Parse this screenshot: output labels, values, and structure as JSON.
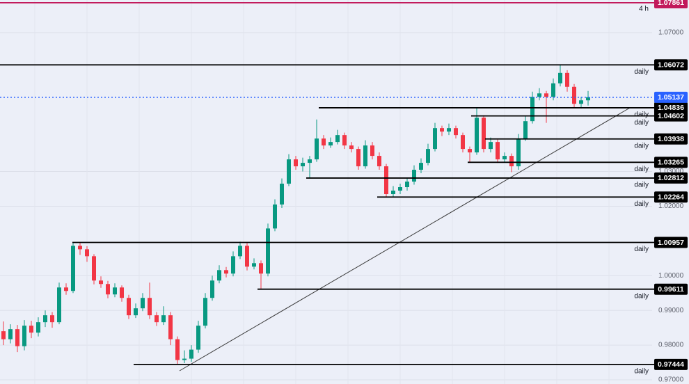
{
  "chart_data": {
    "type": "candlestick",
    "up_color": "#089981",
    "down_color": "#f23645",
    "ylim": [
      0.9688,
      1.0794
    ],
    "yticks": [
      {
        "value": 0.97,
        "label": "0.97000"
      },
      {
        "value": 0.98,
        "label": "0.98000"
      },
      {
        "value": 0.99,
        "label": "0.99000"
      },
      {
        "value": 1.0,
        "label": "1.00000"
      },
      {
        "value": 1.02,
        "label": "1.02000"
      },
      {
        "value": 1.03,
        "label": "1.03000"
      },
      {
        "value": 1.07,
        "label": "1.07000"
      }
    ],
    "grid": true,
    "current_price": {
      "value": 1.05137,
      "color": "#2962ff"
    },
    "levels": [
      {
        "value": 1.07861,
        "tag": "4 h",
        "color": "#c2185b"
      },
      {
        "value": 1.06072,
        "tag": "daily",
        "color": "#000000"
      },
      {
        "value": 1.04836,
        "tag": "daily",
        "color": "#000000"
      },
      {
        "value": 1.04602,
        "tag": "daily",
        "color": "#000000"
      },
      {
        "value": 1.03938,
        "tag": "daily",
        "color": "#000000"
      },
      {
        "value": 1.03265,
        "tag": "daily",
        "color": "#000000"
      },
      {
        "value": 1.02812,
        "tag": "daily",
        "color": "#000000"
      },
      {
        "value": 1.02264,
        "tag": "daily",
        "color": "#000000"
      },
      {
        "value": 1.00957,
        "tag": "daily",
        "color": "#000000"
      },
      {
        "value": 0.99611,
        "tag": "daily",
        "color": "#000000"
      },
      {
        "value": 0.97444,
        "tag": "daily",
        "color": "#000000"
      }
    ],
    "ohlc": [
      [
        0.984,
        0.9868,
        0.98,
        0.9817
      ],
      [
        0.9817,
        0.986,
        0.9805,
        0.9846
      ],
      [
        0.9846,
        0.9858,
        0.978,
        0.9797
      ],
      [
        0.9797,
        0.9872,
        0.9785,
        0.9856
      ],
      [
        0.9856,
        0.987,
        0.982,
        0.9836
      ],
      [
        0.9836,
        0.988,
        0.9825,
        0.9866
      ],
      [
        0.9866,
        0.99,
        0.9852,
        0.9886
      ],
      [
        0.9886,
        0.9895,
        0.985,
        0.9866
      ],
      [
        0.9866,
        0.998,
        0.986,
        0.9966
      ],
      [
        0.9966,
        0.9978,
        0.9945,
        0.9956
      ],
      [
        0.9956,
        1.0096,
        0.995,
        1.0086
      ],
      [
        1.0086,
        1.0095,
        1.006,
        1.0076
      ],
      [
        1.0076,
        1.0085,
        1.004,
        1.0056
      ],
      [
        1.0056,
        1.0062,
        0.9975,
        0.9986
      ],
      [
        0.9986,
        0.9998,
        0.9965,
        0.9976
      ],
      [
        0.9976,
        0.9985,
        0.9935,
        0.9946
      ],
      [
        0.9946,
        0.9978,
        0.9938,
        0.9966
      ],
      [
        0.9966,
        0.9972,
        0.9925,
        0.9936
      ],
      [
        0.9936,
        0.9945,
        0.9875,
        0.9886
      ],
      [
        0.9886,
        0.992,
        0.9878,
        0.9906
      ],
      [
        0.9906,
        0.995,
        0.9898,
        0.9936
      ],
      [
        0.9936,
        0.998,
        0.9875,
        0.9886
      ],
      [
        0.9886,
        0.9895,
        0.9855,
        0.9866
      ],
      [
        0.9866,
        0.9912,
        0.9858,
        0.9886
      ],
      [
        0.9886,
        0.9895,
        0.98,
        0.9817
      ],
      [
        0.9817,
        0.9825,
        0.9744,
        0.9757
      ],
      [
        0.9757,
        0.9785,
        0.9748,
        0.9761
      ],
      [
        0.9761,
        0.98,
        0.9752,
        0.9787
      ],
      [
        0.9787,
        0.987,
        0.9778,
        0.9856
      ],
      [
        0.9856,
        0.995,
        0.9848,
        0.9936
      ],
      [
        0.9936,
        1.0,
        0.9928,
        0.9986
      ],
      [
        0.9986,
        1.003,
        0.9978,
        1.0016
      ],
      [
        1.0016,
        1.0025,
        0.9995,
        1.0006
      ],
      [
        1.0006,
        1.007,
        0.9998,
        1.0056
      ],
      [
        1.0056,
        1.0098,
        1.0048,
        1.0086
      ],
      [
        1.0086,
        1.0094,
        1.0015,
        1.0026
      ],
      [
        1.0026,
        1.005,
        1.0018,
        1.0036
      ],
      [
        1.0036,
        1.0044,
        0.9961,
        1.0006
      ],
      [
        1.0006,
        1.015,
        0.9998,
        1.0136
      ],
      [
        1.0136,
        1.022,
        1.0128,
        1.0205
      ],
      [
        1.0205,
        1.028,
        1.0195,
        1.0265
      ],
      [
        1.0265,
        1.035,
        1.0258,
        1.0335
      ],
      [
        1.0335,
        1.0345,
        1.0305,
        1.0315
      ],
      [
        1.0315,
        1.034,
        1.03,
        1.0325
      ],
      [
        1.0325,
        1.0345,
        1.0281,
        1.0335
      ],
      [
        1.0335,
        1.045,
        1.0328,
        1.0395
      ],
      [
        1.0395,
        1.0405,
        1.0365,
        1.0375
      ],
      [
        1.0375,
        1.0398,
        1.0368,
        1.0385
      ],
      [
        1.0385,
        1.042,
        1.0378,
        1.0405
      ],
      [
        1.0405,
        1.0412,
        1.0365,
        1.0375
      ],
      [
        1.0375,
        1.0385,
        1.0355,
        1.0365
      ],
      [
        1.0365,
        1.0372,
        1.0305,
        1.0315
      ],
      [
        1.0315,
        1.039,
        1.0308,
        1.0375
      ],
      [
        1.0375,
        1.0385,
        1.0335,
        1.0345
      ],
      [
        1.0345,
        1.0355,
        1.0305,
        1.0315
      ],
      [
        1.0315,
        1.0322,
        1.0226,
        1.0235
      ],
      [
        1.0235,
        1.0258,
        1.0226,
        1.0245
      ],
      [
        1.0245,
        1.0265,
        1.0235,
        1.0255
      ],
      [
        1.0255,
        1.0282,
        1.0245,
        1.0271
      ],
      [
        1.0271,
        1.0318,
        1.0262,
        1.0305
      ],
      [
        1.0305,
        1.0338,
        1.0295,
        1.0325
      ],
      [
        1.0325,
        1.038,
        1.0318,
        1.0365
      ],
      [
        1.0365,
        1.044,
        1.0358,
        1.0425
      ],
      [
        1.0425,
        1.0432,
        1.0402,
        1.0415
      ],
      [
        1.0415,
        1.0438,
        1.0405,
        1.0425
      ],
      [
        1.0425,
        1.0432,
        1.0395,
        1.0405
      ],
      [
        1.0405,
        1.0412,
        1.0355,
        1.0365
      ],
      [
        1.0365,
        1.0372,
        1.0327,
        1.0355
      ],
      [
        1.0355,
        1.0485,
        1.0348,
        1.0455
      ],
      [
        1.0455,
        1.0462,
        1.0355,
        1.0365
      ],
      [
        1.0365,
        1.0398,
        1.0355,
        1.0385
      ],
      [
        1.0385,
        1.0392,
        1.0325,
        1.0335
      ],
      [
        1.0335,
        1.0355,
        1.0326,
        1.0345
      ],
      [
        1.0345,
        1.0352,
        1.0298,
        1.0315
      ],
      [
        1.0315,
        1.0408,
        1.0305,
        1.0395
      ],
      [
        1.0395,
        1.046,
        1.0388,
        1.0445
      ],
      [
        1.0445,
        1.053,
        1.0438,
        1.0515
      ],
      [
        1.0515,
        1.054,
        1.0505,
        1.0525
      ],
      [
        1.0525,
        1.0532,
        1.044,
        1.0515
      ],
      [
        1.0515,
        1.0568,
        1.0505,
        1.0554
      ],
      [
        1.0554,
        1.0607,
        1.0545,
        1.0584
      ],
      [
        1.0584,
        1.0592,
        1.053,
        1.0544
      ],
      [
        1.0544,
        1.0552,
        1.0485,
        1.0495
      ],
      [
        1.0495,
        1.0515,
        1.0482,
        1.0505
      ],
      [
        1.0505,
        1.0532,
        1.049,
        1.0514
      ]
    ]
  }
}
